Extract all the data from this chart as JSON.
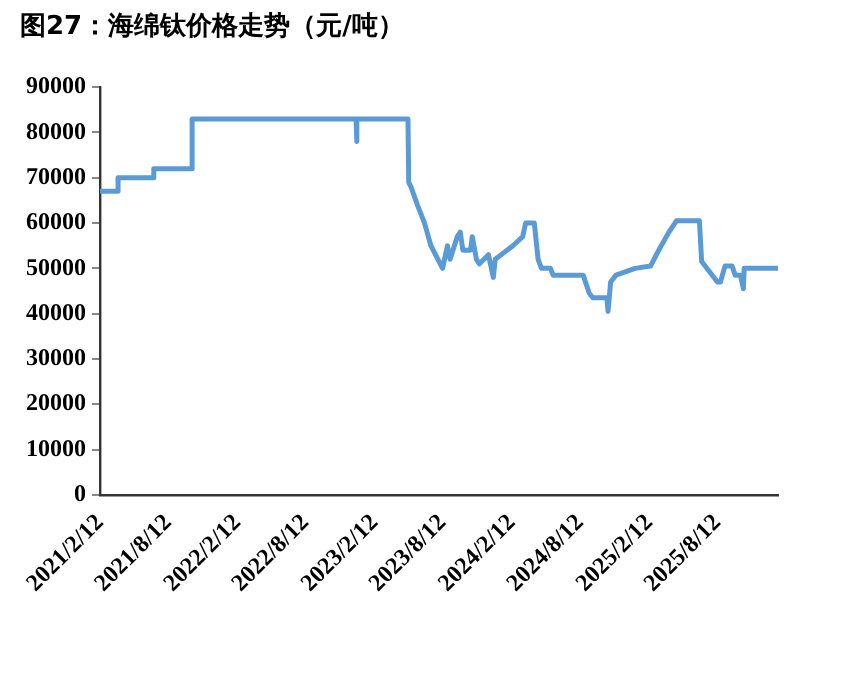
{
  "chart_data": {
    "type": "line",
    "title": "图27：海绵钛价格走势（元/吨）",
    "x": [
      "2021-02-12",
      "2021-04-01",
      "2021-04-01",
      "2021-07-05",
      "2021-07-05",
      "2021-10-15",
      "2021-10-15",
      "2022-12-25",
      "2022-12-26",
      "2022-12-28",
      "2023-05-12",
      "2023-05-14",
      "2023-05-20",
      "2023-06-06",
      "2023-06-25",
      "2023-07-12",
      "2023-08-12",
      "2023-08-25",
      "2023-09-01",
      "2023-09-20",
      "2023-09-28",
      "2023-10-05",
      "2023-10-25",
      "2023-10-30",
      "2023-11-10",
      "2023-11-18",
      "2023-12-12",
      "2023-12-25",
      "2023-12-30",
      "2024-02-15",
      "2024-03-12",
      "2024-03-20",
      "2024-04-12",
      "2024-04-22",
      "2024-05-01",
      "2024-05-25",
      "2024-06-01",
      "2024-08-20",
      "2024-09-05",
      "2024-09-15",
      "2024-10-22",
      "2024-10-25",
      "2024-11-01",
      "2024-11-15",
      "2025-01-05",
      "2025-02-15",
      "2025-03-12",
      "2025-04-05",
      "2025-04-25",
      "2025-06-25",
      "2025-07-01",
      "2025-08-12",
      "2025-08-20",
      "2025-09-01",
      "2025-09-20",
      "2025-09-28",
      "2025-10-12",
      "2025-10-20",
      "2025-10-22",
      "2026-01-20"
    ],
    "series": [
      {
        "color": "#5b9bd5",
        "values": [
          67000,
          67000,
          70000,
          70000,
          72000,
          72000,
          83000,
          83000,
          78000,
          83000,
          83000,
          69000,
          68000,
          64000,
          60000,
          55000,
          50000,
          55000,
          52000,
          57000,
          58000,
          54000,
          54000,
          57000,
          52000,
          51000,
          53000,
          48000,
          52000,
          55000,
          57000,
          60000,
          60000,
          52000,
          50000,
          50000,
          48500,
          48500,
          44500,
          43500,
          43500,
          40500,
          47000,
          48500,
          50000,
          50500,
          54500,
          58000,
          60500,
          60500,
          51500,
          47000,
          47000,
          50500,
          50500,
          48500,
          48500,
          45500,
          50000,
          50000
        ]
      }
    ],
    "xlim": [
      "2021-02-12",
      "2026-01-20"
    ],
    "xticks": [
      {
        "value": "2021-02-12",
        "label": "2021/2/12"
      },
      {
        "value": "2021-08-12",
        "label": "2021/8/12"
      },
      {
        "value": "2022-02-12",
        "label": "2022/2/12"
      },
      {
        "value": "2022-08-12",
        "label": "2022/8/12"
      },
      {
        "value": "2023-02-12",
        "label": "2023/2/12"
      },
      {
        "value": "2023-08-12",
        "label": "2023/8/12"
      },
      {
        "value": "2024-02-12",
        "label": "2024/2/12"
      },
      {
        "value": "2024-08-12",
        "label": "2024/8/12"
      },
      {
        "value": "2025-02-12",
        "label": "2025/2/12"
      },
      {
        "value": "2025-08-12",
        "label": "2025/8/12"
      }
    ],
    "ylim": [
      0,
      90000
    ],
    "yticks": [
      0,
      10000,
      20000,
      30000,
      40000,
      50000,
      60000,
      70000,
      80000,
      90000
    ],
    "grid": false,
    "legend": false,
    "marker": "none",
    "line_style": "solid"
  }
}
